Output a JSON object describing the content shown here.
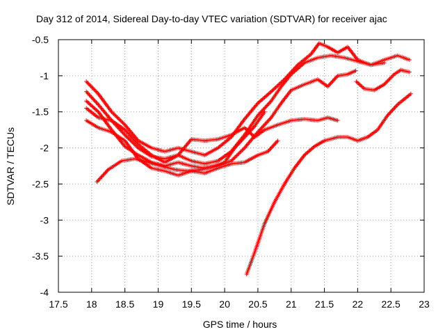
{
  "chart_data": {
    "type": "line",
    "title": "Day 312 of 2014, Sidereal Day-to-day VTEC variation (SDTVAR) for receiver ajac",
    "xlabel": "GPS time / hours",
    "ylabel": "SDTVAR / TECUs",
    "xlim": [
      17.5,
      23
    ],
    "ylim": [
      -4,
      -0.5
    ],
    "xticks": [
      "17.5",
      "18",
      "18.5",
      "19",
      "19.5",
      "20",
      "20.5",
      "21",
      "21.5",
      "22",
      "22.5",
      "23"
    ],
    "yticks": [
      "-4",
      "-3.5",
      "-3",
      "-2.5",
      "-2",
      "-1.5",
      "-1",
      "-0.5"
    ],
    "grid": true,
    "marker": "+",
    "color": "#ff0000",
    "series": [
      {
        "name": "s1",
        "x": [
          17.92,
          18.1,
          18.3,
          18.5,
          18.7,
          18.9,
          19.1,
          19.3,
          19.5,
          19.7,
          19.9,
          20.1,
          20.3,
          20.5,
          20.7,
          20.9,
          21.1,
          21.3,
          21.42,
          21.55,
          21.7,
          21.85,
          22.0,
          22.2,
          22.4,
          22.6,
          22.78
        ],
        "y": [
          -1.08,
          -1.25,
          -1.5,
          -1.68,
          -1.9,
          -2.0,
          -2.05,
          -2.0,
          -2.05,
          -2.1,
          -2.0,
          -1.85,
          -1.6,
          -1.38,
          -1.22,
          -1.05,
          -0.85,
          -0.7,
          -0.55,
          -0.6,
          -0.68,
          -0.6,
          -0.78,
          -0.85,
          -0.78,
          -0.72,
          -0.78
        ]
      },
      {
        "name": "s2",
        "x": [
          17.92,
          18.1,
          18.3,
          18.5,
          18.7,
          18.9,
          19.1,
          19.3,
          19.5,
          19.7,
          19.9,
          20.1,
          20.3,
          20.5,
          20.7,
          20.85,
          21.0,
          21.2,
          21.4,
          21.6,
          21.8,
          22.0,
          22.2,
          22.4
        ],
        "y": [
          -1.22,
          -1.4,
          -1.62,
          -1.82,
          -2.0,
          -2.12,
          -2.15,
          -2.1,
          -2.18,
          -2.22,
          -2.18,
          -2.05,
          -1.82,
          -1.55,
          -1.35,
          -1.15,
          -0.98,
          -0.82,
          -0.75,
          -0.72,
          -0.75,
          -0.8,
          -0.85,
          -0.82
        ]
      },
      {
        "name": "s3",
        "x": [
          17.92,
          18.1,
          18.3,
          18.5,
          18.7,
          18.9,
          19.1,
          19.3,
          19.5,
          19.7,
          19.9,
          20.1,
          20.3,
          20.5,
          20.7,
          20.85,
          21.0,
          21.2,
          21.4,
          21.55,
          21.7,
          21.85,
          21.97
        ],
        "y": [
          -1.35,
          -1.5,
          -1.75,
          -1.98,
          -2.1,
          -2.2,
          -2.25,
          -2.2,
          -2.25,
          -2.28,
          -2.25,
          -2.18,
          -2.0,
          -1.78,
          -1.58,
          -1.38,
          -1.2,
          -1.12,
          -1.05,
          -1.15,
          -1.0,
          -0.98,
          -0.93
        ]
      },
      {
        "name": "s4",
        "x": [
          17.92,
          18.1,
          18.3,
          18.5,
          18.7,
          18.9,
          19.1,
          19.3,
          19.5,
          19.7,
          19.9,
          20.1,
          20.3,
          20.45,
          20.6,
          20.8,
          21.0,
          21.2,
          21.4,
          21.55,
          21.7
        ],
        "y": [
          -1.45,
          -1.58,
          -1.62,
          -1.75,
          -1.95,
          -2.1,
          -2.2,
          -2.1,
          -1.88,
          -1.9,
          -1.88,
          -1.82,
          -1.72,
          -1.85,
          -1.75,
          -1.68,
          -1.62,
          -1.6,
          -1.62,
          -1.58,
          -1.62
        ]
      },
      {
        "name": "s5",
        "x": [
          17.92,
          18.1,
          18.3,
          18.5,
          18.7,
          18.9,
          19.1,
          19.3,
          19.5,
          19.7,
          19.9,
          20.1,
          20.3,
          20.5,
          20.65,
          20.8
        ],
        "y": [
          -1.62,
          -1.72,
          -1.78,
          -1.9,
          -2.15,
          -2.28,
          -2.32,
          -2.38,
          -2.32,
          -2.35,
          -2.28,
          -2.22,
          -2.2,
          -2.1,
          -2.05,
          -1.9
        ]
      },
      {
        "name": "s6",
        "x": [
          18.08,
          18.25,
          18.45,
          18.65,
          18.85,
          19.05,
          19.25,
          19.45,
          19.65,
          19.85,
          20.0,
          20.15,
          20.3,
          20.45,
          20.6
        ],
        "y": [
          -2.47,
          -2.3,
          -2.18,
          -2.15,
          -2.2,
          -2.25,
          -2.3,
          -2.32,
          -2.3,
          -2.25,
          -2.2,
          -2.0,
          -1.85,
          -1.7,
          -1.5
        ]
      },
      {
        "name": "s7",
        "x": [
          20.33,
          20.45,
          20.6,
          20.75,
          20.9,
          21.05,
          21.2,
          21.35,
          21.5,
          21.7,
          21.85,
          22.0,
          22.15,
          22.3,
          22.45,
          22.6,
          22.8
        ],
        "y": [
          -3.75,
          -3.45,
          -3.05,
          -2.75,
          -2.5,
          -2.28,
          -2.1,
          -1.98,
          -1.9,
          -1.85,
          -1.85,
          -1.9,
          -1.85,
          -1.75,
          -1.55,
          -1.4,
          -1.25
        ]
      },
      {
        "name": "s8",
        "x": [
          21.98,
          22.1,
          22.25,
          22.4,
          22.55,
          22.65,
          22.78
        ],
        "y": [
          -1.08,
          -1.18,
          -1.2,
          -1.12,
          -0.98,
          -0.92,
          -0.95
        ]
      }
    ]
  }
}
